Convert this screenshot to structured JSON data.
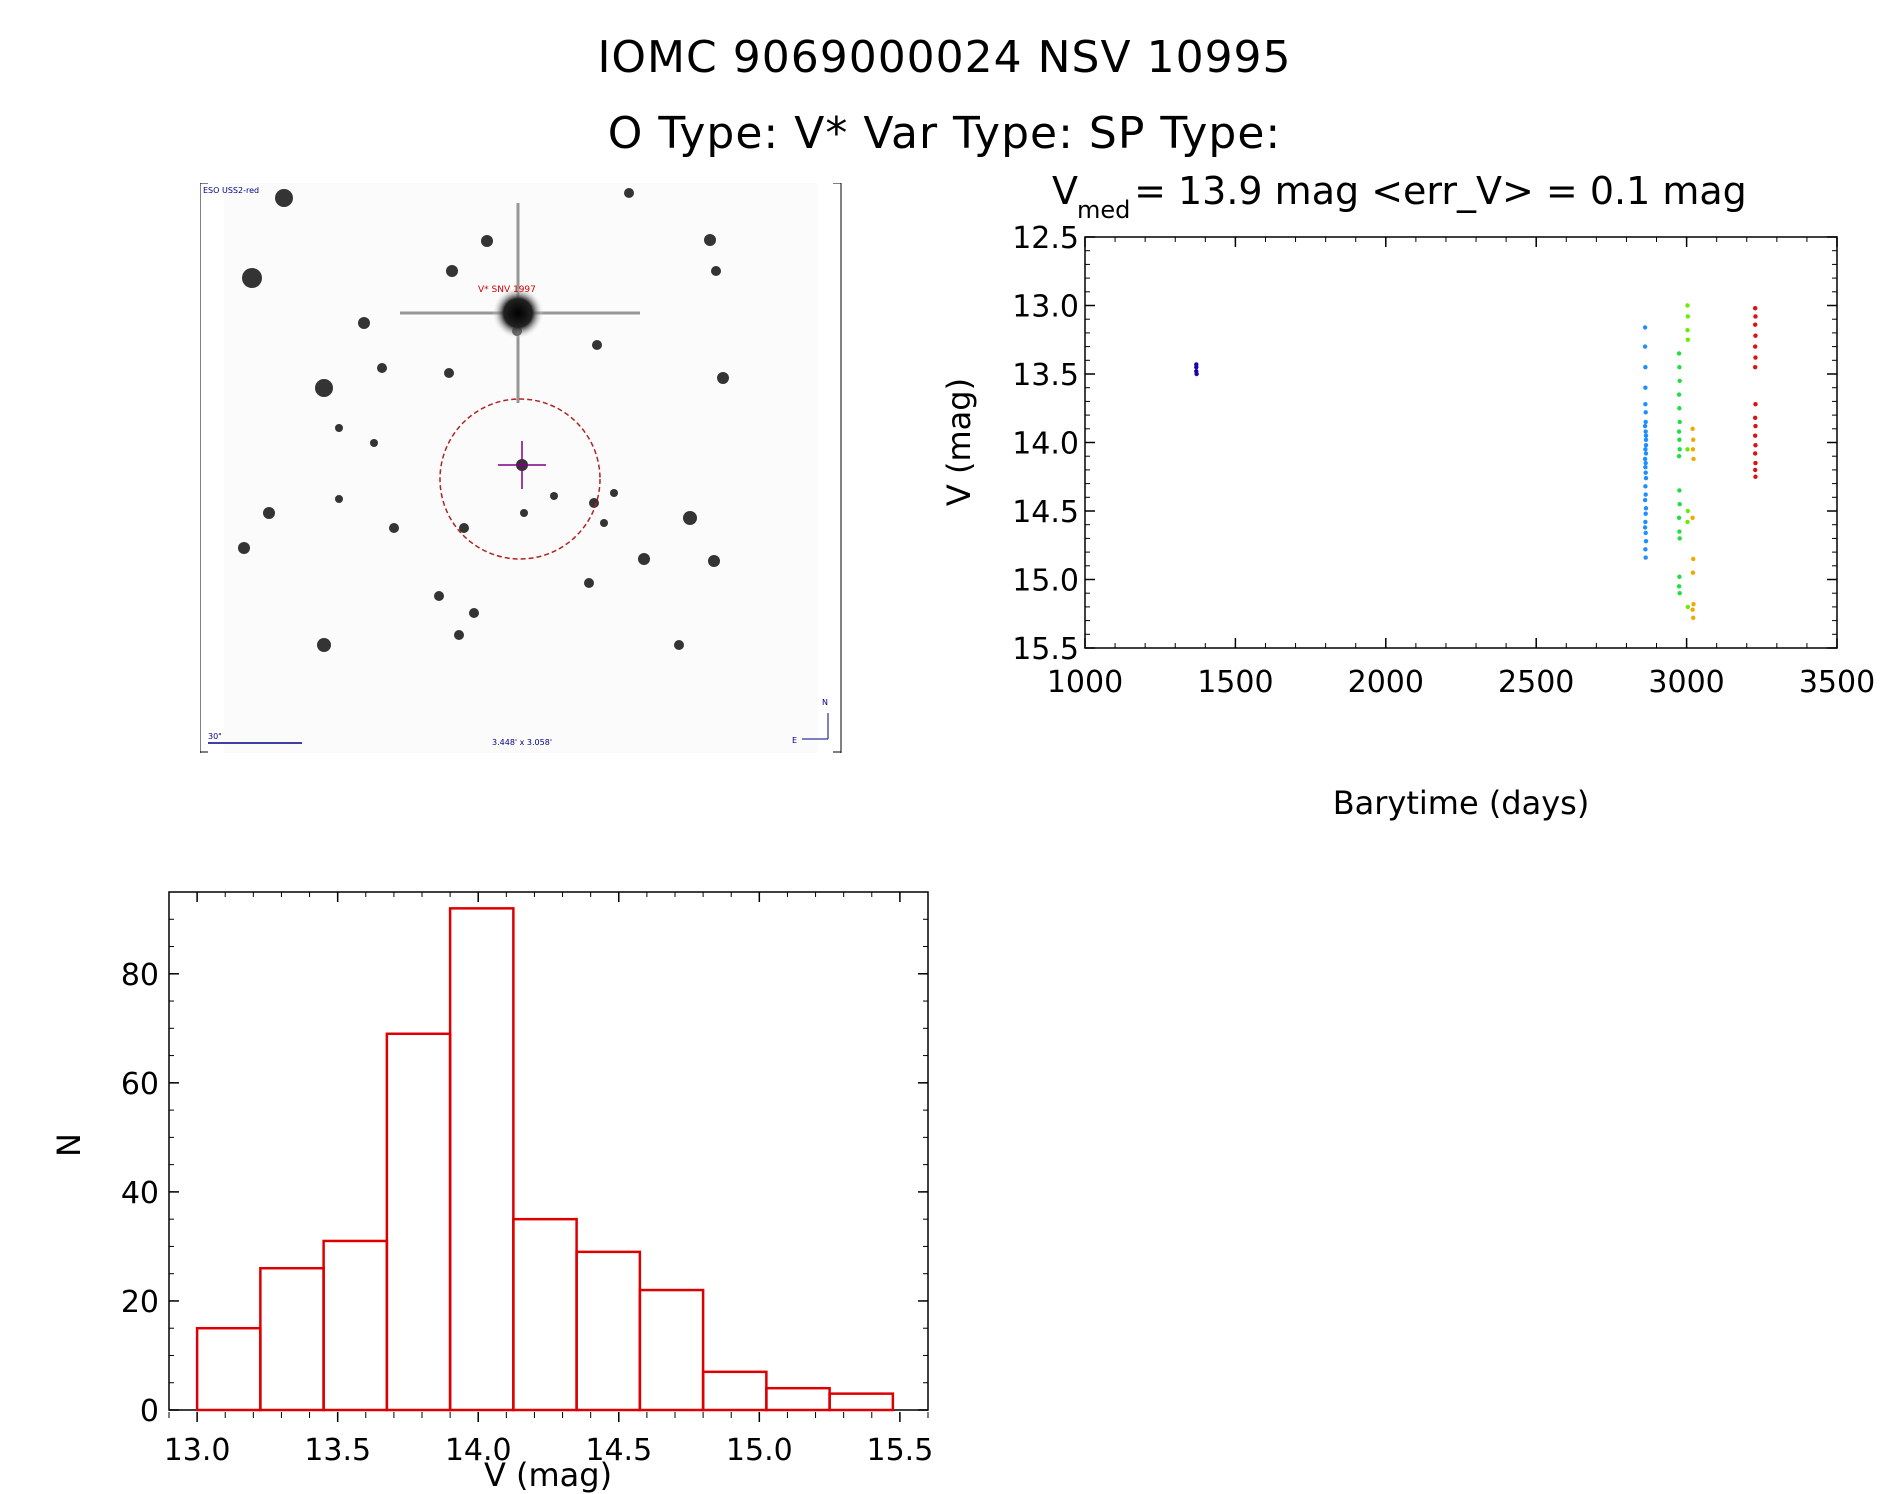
{
  "header": {
    "title": "IOMC 9069000024    NSV 10995",
    "subtitle": "O Type: V*  Var Type:    SP Type:"
  },
  "finding_chart": {
    "survey_label": "ESO USS2-red",
    "object_label": "V* SNV 1997",
    "scale_label": "30\"",
    "size_label": "3.448' x 3.058'",
    "compass_north": "N",
    "compass_east": "E",
    "colors": {
      "circle": "#b22222",
      "crosshair": "#800080",
      "labels": "#00008b",
      "object_label": "#d40000"
    }
  },
  "light_curve": {
    "stat_v": "V",
    "stat_sub": "med",
    "stat_rest": " = 13.9 mag <err_V> = 0.1 mag",
    "xlabel": "Barytime (days)",
    "ylabel": "V (mag)",
    "xlim": [
      1000,
      3500
    ],
    "ylim": [
      15.5,
      12.5
    ],
    "xticks": [
      "1000",
      "1500",
      "2000",
      "2500",
      "3000",
      "3500"
    ],
    "yticks": [
      "12.5",
      "13.0",
      "13.5",
      "14.0",
      "14.5",
      "15.0",
      "15.5"
    ]
  },
  "chart_data": [
    {
      "type": "scatter",
      "xlabel": "Barytime (days)",
      "ylabel": "V (mag)",
      "xlim": [
        1000,
        3500
      ],
      "ylim": [
        15.5,
        12.5
      ],
      "y_inverted": true,
      "series": [
        {
          "color": "#2200aa",
          "x": [
            1370,
            1370,
            1370,
            1371
          ],
          "y": [
            13.43,
            13.45,
            13.48,
            13.5
          ]
        },
        {
          "color": "#1e8fff",
          "x": [
            2862,
            2862,
            2863,
            2863,
            2863,
            2864,
            2864,
            2864,
            2865,
            2865,
            2865,
            2862,
            2863,
            2864,
            2865,
            2863,
            2864,
            2862,
            2865,
            2864,
            2863,
            2862,
            2864,
            2865,
            2863,
            2864,
            2862,
            2865,
            2863,
            2864
          ],
          "y": [
            13.16,
            13.3,
            13.45,
            13.6,
            13.72,
            13.78,
            13.85,
            13.92,
            13.98,
            14.02,
            14.08,
            14.12,
            14.18,
            14.22,
            14.26,
            14.32,
            14.38,
            14.42,
            14.48,
            14.52,
            14.58,
            14.62,
            14.66,
            14.72,
            14.78,
            14.84,
            13.88,
            13.95,
            14.05,
            14.15
          ]
        },
        {
          "color": "#22dd44",
          "x": [
            2975,
            2976,
            2977,
            2975,
            2976,
            2977,
            2975,
            2976,
            2977,
            2975,
            2976,
            2977,
            2975,
            2976,
            2977,
            2976,
            2975,
            2977
          ],
          "y": [
            13.35,
            13.45,
            13.55,
            13.65,
            13.75,
            13.85,
            13.92,
            13.98,
            14.05,
            14.1,
            14.35,
            14.45,
            14.55,
            14.65,
            14.7,
            14.98,
            15.05,
            15.1
          ]
        },
        {
          "color": "#66ee00",
          "x": [
            3003,
            3004,
            3003,
            3004,
            3003,
            3004,
            3003,
            3004
          ],
          "y": [
            13.0,
            13.08,
            13.18,
            13.25,
            14.05,
            14.5,
            14.58,
            15.2
          ]
        },
        {
          "color": "#eeaa00",
          "x": [
            3020,
            3022,
            3021,
            3023,
            3020,
            3022,
            3021,
            3023,
            3020,
            3022
          ],
          "y": [
            13.9,
            13.98,
            14.05,
            14.12,
            14.55,
            14.85,
            14.95,
            15.18,
            15.22,
            15.28
          ]
        },
        {
          "color": "#dd1111",
          "x": [
            3228,
            3229,
            3228,
            3229,
            3228,
            3229,
            3228,
            3229,
            3228,
            3229,
            3228,
            3229,
            3228,
            3229,
            3228,
            3229
          ],
          "y": [
            13.02,
            13.08,
            13.14,
            13.22,
            13.3,
            13.38,
            13.45,
            13.72,
            13.82,
            13.88,
            13.95,
            14.02,
            14.08,
            14.15,
            14.2,
            14.25
          ]
        }
      ]
    },
    {
      "type": "bar",
      "xlabel": "V (mag)",
      "ylabel": "N",
      "xlim": [
        12.9,
        15.6
      ],
      "ylim": [
        0,
        95
      ],
      "bin_edges": [
        13.0,
        13.225,
        13.45,
        13.675,
        13.9,
        14.125,
        14.35,
        14.575,
        14.8,
        15.025,
        15.25,
        15.475
      ],
      "values": [
        15,
        26,
        31,
        69,
        92,
        35,
        29,
        22,
        7,
        4,
        3
      ],
      "xticks": [
        "13.0",
        "13.5",
        "14.0",
        "14.5",
        "15.0",
        "15.5"
      ],
      "yticks": [
        "0",
        "20",
        "40",
        "60",
        "80"
      ],
      "bar_color": "#dd0000"
    }
  ]
}
